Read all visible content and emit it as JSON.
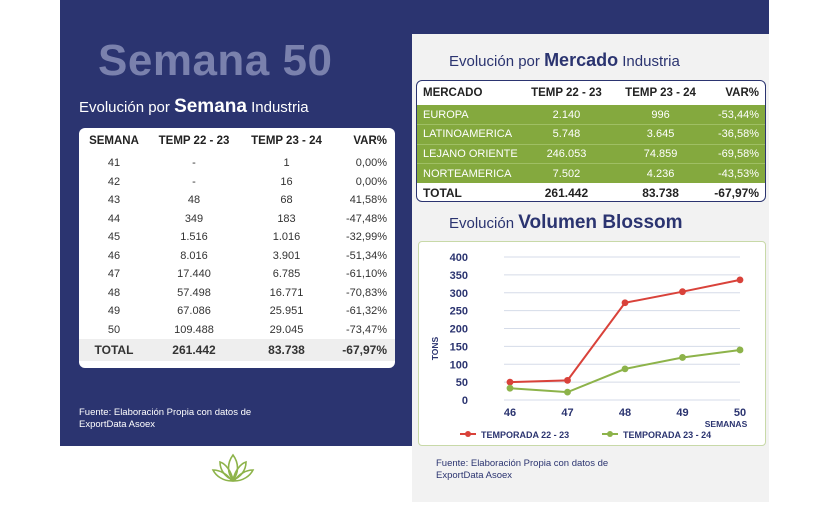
{
  "left": {
    "big_title": "Semana 50",
    "subtitle_prefix": "Evolución por ",
    "subtitle_bold": "Semana",
    "subtitle_suffix": " Industria",
    "table": {
      "headers": [
        "SEMANA",
        "TEMP 22 - 23",
        "TEMP 23 - 24",
        "VAR%"
      ],
      "rows": [
        [
          "41",
          "-",
          "1",
          "0,00%"
        ],
        [
          "42",
          "-",
          "16",
          "0,00%"
        ],
        [
          "43",
          "48",
          "68",
          "41,58%"
        ],
        [
          "44",
          "349",
          "183",
          "-47,48%"
        ],
        [
          "45",
          "1.516",
          "1.016",
          "-32,99%"
        ],
        [
          "46",
          "8.016",
          "3.901",
          "-51,34%"
        ],
        [
          "47",
          "17.440",
          "6.785",
          "-61,10%"
        ],
        [
          "48",
          "57.498",
          "16.771",
          "-70,83%"
        ],
        [
          "49",
          "67.086",
          "25.951",
          "-61,32%"
        ],
        [
          "50",
          "109.488",
          "29.045",
          "-73,47%"
        ]
      ],
      "total": [
        "TOTAL",
        "261.442",
        "83.738",
        "-67,97%"
      ]
    },
    "fuente": "Fuente: Elaboración Propia con datos de ExportData Asoex"
  },
  "right": {
    "subtitle_prefix": "Evolución por ",
    "subtitle_bold": "Mercado",
    "subtitle_suffix": " Industria",
    "table": {
      "headers": [
        "MERCADO",
        "TEMP 22 - 23",
        "TEMP 23 - 24",
        "VAR%"
      ],
      "rows": [
        [
          "EUROPA",
          "2.140",
          "996",
          "-53,44%"
        ],
        [
          "LATINOAMERICA",
          "5.748",
          "3.645",
          "-36,58%"
        ],
        [
          "LEJANO ORIENTE",
          "246.053",
          "74.859",
          "-69,58%"
        ],
        [
          "NORTEAMERICA",
          "7.502",
          "4.236",
          "-43,53%"
        ]
      ],
      "total": [
        "TOTAL",
        "261.442",
        "83.738",
        "-67,97%"
      ]
    },
    "chart_title_prefix": "Evolución ",
    "chart_title_bold": "Volumen Blossom",
    "fuente": "Fuente: Elaboración Propia con datos de ExportData Asoex"
  },
  "colors": {
    "navy": "#2b3470",
    "green": "#84a93e",
    "red_series": "#d9423a",
    "green_series": "#8db34a"
  },
  "chart_data": {
    "type": "line",
    "x": [
      "46",
      "47",
      "48",
      "49",
      "50"
    ],
    "xlabel": "SEMANAS",
    "ylabel": "TONS",
    "ylim": [
      0,
      400
    ],
    "yticks": [
      "0",
      "50",
      "100",
      "150",
      "200",
      "250",
      "300",
      "350",
      "400"
    ],
    "grid": true,
    "legend": "bottom",
    "series": [
      {
        "name": "TEMPORADA 22 - 23",
        "values": [
          50,
          55,
          272,
          303,
          336
        ],
        "color": "#d9423a"
      },
      {
        "name": "TEMPORADA 23 - 24",
        "values": [
          33,
          22,
          87,
          119,
          140
        ],
        "color": "#8db34a"
      }
    ]
  },
  "icons": {
    "logo": "lotus-icon"
  }
}
